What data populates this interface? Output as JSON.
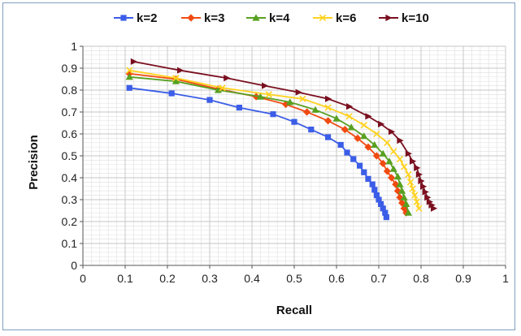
{
  "chart_data": {
    "type": "line",
    "title": "",
    "xlabel": "Recall",
    "ylabel": "Precision",
    "xlim": [
      0,
      1
    ],
    "ylim": [
      0,
      1
    ],
    "x_ticks": [
      "0",
      "0.1",
      "0.2",
      "0.3",
      "0.4",
      "0.5",
      "0.6",
      "0.7",
      "0.8",
      "0.9",
      "1"
    ],
    "y_ticks": [
      "0",
      "0.1",
      "0.2",
      "0.3",
      "0.4",
      "0.5",
      "0.6",
      "0.7",
      "0.8",
      "0.9",
      "1"
    ],
    "grid": true,
    "legend_position": "top",
    "series": [
      {
        "name": "k=2",
        "color": "#3b5de7",
        "marker": "square",
        "x": [
          0.11,
          0.21,
          0.3,
          0.37,
          0.45,
          0.5,
          0.54,
          0.58,
          0.61,
          0.625,
          0.64,
          0.655,
          0.665,
          0.675,
          0.685,
          0.69,
          0.695,
          0.7,
          0.705,
          0.71,
          0.715,
          0.718
        ],
        "y": [
          0.81,
          0.785,
          0.755,
          0.72,
          0.69,
          0.655,
          0.62,
          0.585,
          0.55,
          0.515,
          0.485,
          0.455,
          0.425,
          0.395,
          0.37,
          0.345,
          0.32,
          0.3,
          0.28,
          0.26,
          0.24,
          0.22
        ]
      },
      {
        "name": "k=3",
        "color": "#f04a10",
        "marker": "diamond",
        "x": [
          0.11,
          0.22,
          0.32,
          0.41,
          0.48,
          0.53,
          0.58,
          0.62,
          0.65,
          0.675,
          0.695,
          0.71,
          0.72,
          0.73,
          0.74,
          0.745,
          0.75,
          0.755,
          0.76,
          0.765
        ],
        "y": [
          0.875,
          0.85,
          0.805,
          0.77,
          0.735,
          0.7,
          0.66,
          0.62,
          0.58,
          0.54,
          0.5,
          0.465,
          0.43,
          0.4,
          0.37,
          0.34,
          0.31,
          0.285,
          0.26,
          0.24
        ]
      },
      {
        "name": "k=4",
        "color": "#58a021",
        "marker": "triangle",
        "x": [
          0.11,
          0.22,
          0.32,
          0.42,
          0.49,
          0.55,
          0.6,
          0.635,
          0.665,
          0.69,
          0.71,
          0.725,
          0.735,
          0.745,
          0.75,
          0.755,
          0.76,
          0.765,
          0.77
        ],
        "y": [
          0.86,
          0.84,
          0.8,
          0.77,
          0.745,
          0.71,
          0.67,
          0.63,
          0.59,
          0.55,
          0.51,
          0.475,
          0.44,
          0.405,
          0.37,
          0.34,
          0.31,
          0.28,
          0.24
        ]
      },
      {
        "name": "k=6",
        "color": "#ffd21f",
        "marker": "x",
        "x": [
          0.11,
          0.22,
          0.33,
          0.44,
          0.52,
          0.58,
          0.63,
          0.665,
          0.695,
          0.72,
          0.735,
          0.75,
          0.76,
          0.77,
          0.775,
          0.78,
          0.785,
          0.79,
          0.795
        ],
        "y": [
          0.89,
          0.855,
          0.81,
          0.78,
          0.76,
          0.72,
          0.68,
          0.64,
          0.6,
          0.56,
          0.52,
          0.485,
          0.45,
          0.415,
          0.38,
          0.35,
          0.32,
          0.29,
          0.26
        ]
      },
      {
        "name": "k=10",
        "color": "#7a0f1f",
        "marker": "triangle-right",
        "x": [
          0.12,
          0.23,
          0.34,
          0.43,
          0.51,
          0.58,
          0.63,
          0.675,
          0.705,
          0.73,
          0.75,
          0.77,
          0.78,
          0.79,
          0.795,
          0.8,
          0.805,
          0.81,
          0.815,
          0.82,
          0.825,
          0.83
        ],
        "y": [
          0.93,
          0.89,
          0.855,
          0.82,
          0.79,
          0.76,
          0.725,
          0.68,
          0.645,
          0.61,
          0.57,
          0.51,
          0.475,
          0.445,
          0.415,
          0.385,
          0.36,
          0.335,
          0.31,
          0.29,
          0.275,
          0.26
        ]
      }
    ]
  }
}
